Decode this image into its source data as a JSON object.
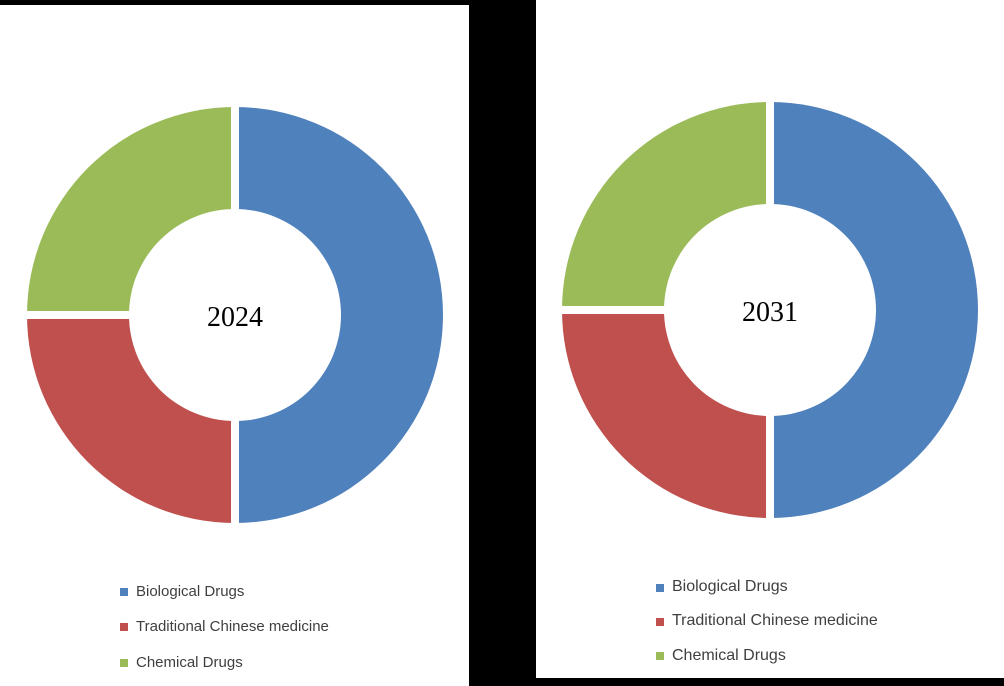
{
  "styles": {
    "background": "#000000",
    "panel_background": "#FFFFFF",
    "separator_color": "#FFFFFF",
    "legend_text_color": "#3F3F3F",
    "center_label_color": "#000000"
  },
  "chart_data": [
    {
      "type": "pie",
      "subtype": "donut",
      "center_label": "2024",
      "start_angle_deg": 0,
      "direction": "clockwise",
      "legend_position": "bottom-left",
      "segments": [
        {
          "name": "Biological Drugs",
          "value": 50,
          "color": "#4F81BD"
        },
        {
          "name": "Traditional Chinese medicine",
          "value": 25,
          "color": "#C0504D"
        },
        {
          "name": "Chemical Drugs",
          "value": 25,
          "color": "#9BBB59"
        }
      ]
    },
    {
      "type": "pie",
      "subtype": "donut",
      "center_label": "2031",
      "start_angle_deg": 0,
      "direction": "clockwise",
      "legend_position": "bottom-left",
      "segments": [
        {
          "name": "Biological Drugs",
          "value": 50,
          "color": "#4F81BD"
        },
        {
          "name": "Traditional Chinese medicine",
          "value": 25,
          "color": "#C0504D"
        },
        {
          "name": "Chemical Drugs",
          "value": 25,
          "color": "#9BBB59"
        }
      ]
    }
  ]
}
